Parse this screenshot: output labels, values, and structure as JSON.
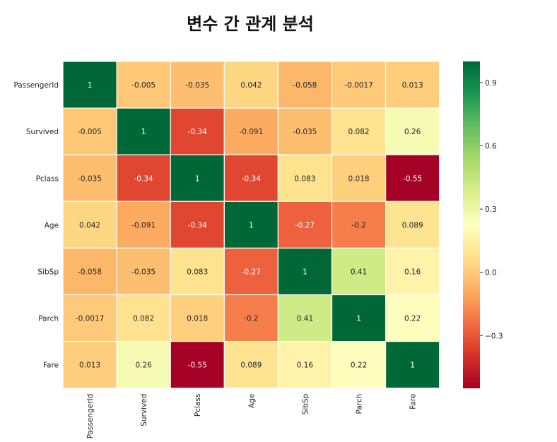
{
  "title": "변수 간 관계 분석",
  "chart_data": {
    "type": "heatmap",
    "title": "변수 간 관계 분석",
    "x_labels": [
      "PassengerId",
      "Survived",
      "Pclass",
      "Age",
      "SibSp",
      "Parch",
      "Fare"
    ],
    "y_labels": [
      "PassengerId",
      "Survived",
      "Pclass",
      "Age",
      "SibSp",
      "Parch",
      "Fare"
    ],
    "values": [
      [
        1,
        -0.005,
        -0.035,
        0.042,
        -0.058,
        -0.0017,
        0.013
      ],
      [
        -0.005,
        1,
        -0.34,
        -0.091,
        -0.035,
        0.082,
        0.26
      ],
      [
        -0.035,
        -0.34,
        1,
        -0.34,
        0.083,
        0.018,
        -0.55
      ],
      [
        0.042,
        -0.091,
        -0.34,
        1,
        -0.27,
        -0.2,
        0.089
      ],
      [
        -0.058,
        -0.035,
        0.083,
        -0.27,
        1,
        0.41,
        0.16
      ],
      [
        -0.0017,
        0.082,
        0.018,
        -0.2,
        0.41,
        1,
        0.22
      ],
      [
        0.013,
        0.26,
        -0.55,
        0.089,
        0.16,
        0.22,
        1
      ]
    ],
    "value_labels": [
      [
        "1",
        "-0.005",
        "-0.035",
        "0.042",
        "-0.058",
        "-0.0017",
        "0.013"
      ],
      [
        "-0.005",
        "1",
        "-0.34",
        "-0.091",
        "-0.035",
        "0.082",
        "0.26"
      ],
      [
        "-0.035",
        "-0.34",
        "1",
        "-0.34",
        "0.083",
        "0.018",
        "-0.55"
      ],
      [
        "0.042",
        "-0.091",
        "-0.34",
        "1",
        "-0.27",
        "-0.2",
        "0.089"
      ],
      [
        "-0.058",
        "-0.035",
        "0.083",
        "-0.27",
        "1",
        "0.41",
        "0.16"
      ],
      [
        "-0.0017",
        "0.082",
        "0.018",
        "-0.2",
        "0.41",
        "1",
        "0.22"
      ],
      [
        "0.013",
        "0.26",
        "-0.55",
        "0.089",
        "0.16",
        "0.22",
        "1"
      ]
    ],
    "colormap": "RdYlGn",
    "colorbar": {
      "range": [
        -0.55,
        1
      ],
      "ticks": [
        0.9,
        0.6,
        0.3,
        0.0,
        -0.3
      ],
      "tick_labels": [
        "0.9",
        "0.6",
        "0.3",
        "0.0",
        "−0.3"
      ]
    }
  }
}
